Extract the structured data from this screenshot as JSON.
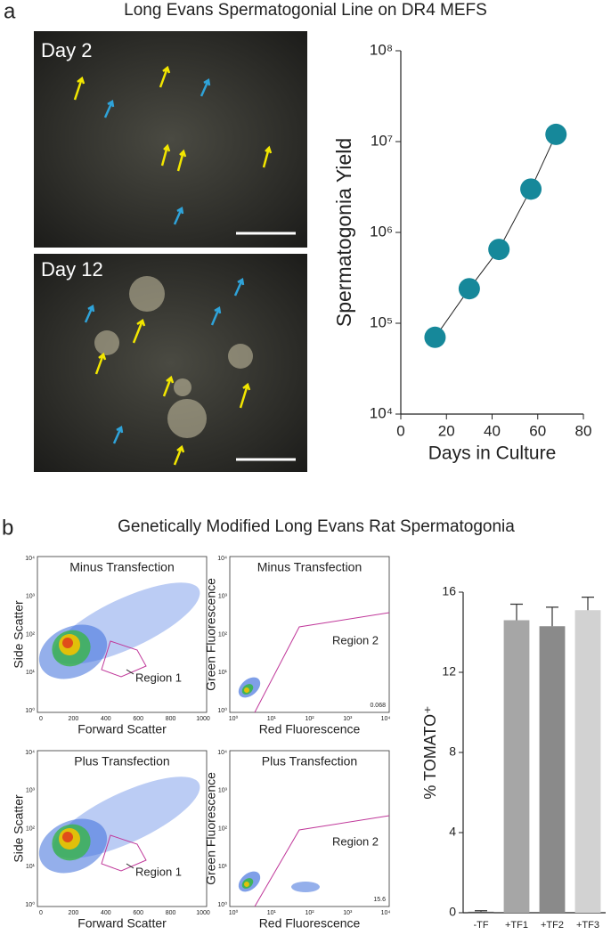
{
  "panels": [
    {
      "letter": "a",
      "title": "Long Evans Spermatogonial Line on DR4 MEFS"
    },
    {
      "letter": "b",
      "title": "Genetically Modified Long Evans Rat Spermatogonia"
    }
  ],
  "micrographs": [
    {
      "label": "Day 2"
    },
    {
      "label": "Day 12"
    }
  ],
  "flow_plots": [
    {
      "title": "Minus Transfection",
      "xlabel": "Forward Scatter",
      "ylabel": "Side Scatter",
      "gate_label": "Region 1",
      "xticks": [
        0,
        200,
        400,
        600,
        800,
        1000
      ],
      "yticks": [
        "10⁰",
        "10¹",
        "10²",
        "10³",
        "10⁴"
      ]
    },
    {
      "title": "Minus Transfection",
      "xlabel": "Red Fluorescence",
      "ylabel": "Green Fluorescence",
      "gate_label": "Region 2",
      "corner_value": "0.068",
      "xticks": [
        "10⁰",
        "10¹",
        "10²",
        "10³",
        "10⁴"
      ],
      "yticks": [
        "10⁰",
        "10¹",
        "10²",
        "10³",
        "10⁴"
      ]
    },
    {
      "title": "Plus Transfection",
      "xlabel": "Forward Scatter",
      "ylabel": "Side Scatter",
      "gate_label": "Region 1",
      "xticks": [
        0,
        200,
        400,
        600,
        800,
        1000
      ],
      "yticks": [
        "10⁰",
        "10¹",
        "10²",
        "10³",
        "10⁴"
      ]
    },
    {
      "title": "Plus Transfection",
      "xlabel": "Red Fluorescence",
      "ylabel": "Green Fluorescence",
      "gate_label": "Region 2",
      "corner_value": "15.6",
      "xticks": [
        "10⁰",
        "10¹",
        "10²",
        "10³",
        "10⁴"
      ],
      "yticks": [
        "10⁰",
        "10¹",
        "10²",
        "10³",
        "10⁴"
      ]
    }
  ],
  "chart_data": [
    {
      "type": "line",
      "xlabel": "Days in Culture",
      "ylabel": "Spermatogonia Yield",
      "x": [
        15,
        30,
        43,
        57,
        68
      ],
      "values": [
        70000,
        240000,
        650000,
        3000000,
        12000000
      ],
      "color": "#16889a",
      "log_y": true,
      "xlim": [
        0,
        80
      ],
      "xticks": [
        0,
        20,
        40,
        60,
        80
      ],
      "ylim": [
        10000,
        100000000
      ],
      "yticks": [
        {
          "value": 10000,
          "label": "10⁴"
        },
        {
          "value": 100000,
          "label": "10⁵"
        },
        {
          "value": 1000000,
          "label": "10⁶"
        },
        {
          "value": 10000000,
          "label": "10⁷"
        },
        {
          "value": 100000000,
          "label": "10⁸"
        }
      ]
    },
    {
      "type": "bar",
      "ylabel": "% TOMATO⁺",
      "categories": [
        "-TF",
        "+TF1",
        "+TF2",
        "+TF3"
      ],
      "values": [
        0.05,
        14.6,
        14.3,
        15.1
      ],
      "errors": [
        0.05,
        0.8,
        0.95,
        0.65
      ],
      "colors": [
        "#555555",
        "#a6a6a6",
        "#8a8a8a",
        "#d2d2d2"
      ],
      "ylim": [
        0,
        16
      ],
      "yticks": [
        0,
        4,
        8,
        12,
        16
      ]
    }
  ]
}
